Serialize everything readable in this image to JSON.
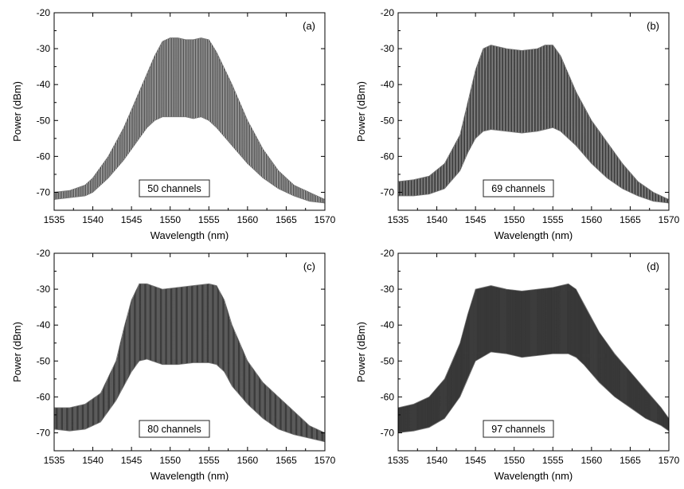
{
  "chart_data": [
    {
      "type": "line",
      "panel_label": "(a)",
      "annotation": "50 channels",
      "xlabel": "Wavelength (nm)",
      "ylabel": "Power (dBm)",
      "xlim": [
        1535,
        1570
      ],
      "ylim": [
        -75,
        -20
      ],
      "xticks": [
        1535,
        1540,
        1545,
        1550,
        1555,
        1560,
        1565,
        1570
      ],
      "yticks": [
        -20,
        -30,
        -40,
        -50,
        -60,
        -70
      ],
      "channel_count": 50,
      "upper_envelope": {
        "x": [
          1535,
          1537,
          1539,
          1540,
          1542,
          1544,
          1546,
          1547,
          1548,
          1549,
          1550,
          1551,
          1552,
          1553,
          1554,
          1555,
          1556,
          1558,
          1560,
          1562,
          1564,
          1566,
          1568,
          1570
        ],
        "y": [
          -70,
          -69.5,
          -68,
          -66,
          -60,
          -52,
          -42,
          -37,
          -32,
          -28,
          -27,
          -27,
          -27.5,
          -27.5,
          -27,
          -27.5,
          -31,
          -40,
          -50,
          -58,
          -64,
          -68,
          -70,
          -72
        ]
      },
      "lower_envelope": {
        "x": [
          1535,
          1537,
          1539,
          1540,
          1542,
          1544,
          1546,
          1547,
          1548,
          1549,
          1550,
          1551,
          1552,
          1553,
          1554,
          1555,
          1556,
          1558,
          1560,
          1562,
          1564,
          1566,
          1568,
          1570
        ],
        "y": [
          -72,
          -71.5,
          -71,
          -70,
          -66,
          -61,
          -55,
          -52,
          -50,
          -49,
          -49,
          -49,
          -49,
          -49.5,
          -49,
          -50,
          -52,
          -57,
          -62,
          -66,
          -69,
          -71,
          -72.5,
          -73
        ]
      }
    },
    {
      "type": "line",
      "panel_label": "(b)",
      "annotation": "69 channels",
      "xlabel": "Wavelength (nm)",
      "ylabel": "Power (dBm)",
      "xlim": [
        1535,
        1570
      ],
      "ylim": [
        -75,
        -20
      ],
      "xticks": [
        1535,
        1540,
        1545,
        1550,
        1555,
        1560,
        1565,
        1570
      ],
      "yticks": [
        -20,
        -30,
        -40,
        -50,
        -60,
        -70
      ],
      "channel_count": 69,
      "upper_envelope": {
        "x": [
          1535,
          1537,
          1539,
          1541,
          1543,
          1544,
          1545,
          1546,
          1547,
          1549,
          1551,
          1553,
          1554,
          1555,
          1556,
          1557,
          1558,
          1560,
          1562,
          1564,
          1566,
          1568,
          1570
        ],
        "y": [
          -67,
          -66.5,
          -65.5,
          -62,
          -54,
          -45,
          -36,
          -30,
          -29,
          -30,
          -30.5,
          -30,
          -29,
          -29,
          -32,
          -37,
          -42,
          -50,
          -56,
          -62,
          -67,
          -70,
          -72
        ]
      },
      "lower_envelope": {
        "x": [
          1535,
          1537,
          1539,
          1541,
          1543,
          1544,
          1545,
          1546,
          1547,
          1549,
          1551,
          1553,
          1554,
          1555,
          1556,
          1557,
          1558,
          1560,
          1562,
          1564,
          1566,
          1568,
          1570
        ],
        "y": [
          -71,
          -71,
          -70.5,
          -69,
          -64,
          -59,
          -55,
          -53,
          -52.5,
          -53,
          -53.5,
          -53,
          -52.5,
          -52,
          -53,
          -55,
          -57,
          -62,
          -66,
          -69,
          -71,
          -72.5,
          -73
        ]
      }
    },
    {
      "type": "line",
      "panel_label": "(c)",
      "annotation": "80 channels",
      "xlabel": "Wavelength (nm)",
      "ylabel": "Power (dBm)",
      "xlim": [
        1535,
        1570
      ],
      "ylim": [
        -75,
        -20
      ],
      "xticks": [
        1535,
        1540,
        1545,
        1550,
        1555,
        1560,
        1565,
        1570
      ],
      "yticks": [
        -20,
        -30,
        -40,
        -50,
        -60,
        -70
      ],
      "channel_count": 80,
      "upper_envelope": {
        "x": [
          1535,
          1537,
          1539,
          1541,
          1543,
          1544,
          1545,
          1546,
          1547,
          1549,
          1551,
          1553,
          1555,
          1556,
          1557,
          1558,
          1560,
          1562,
          1564,
          1566,
          1568,
          1570
        ],
        "y": [
          -63,
          -63,
          -62,
          -59,
          -50,
          -41,
          -33,
          -28.5,
          -28.5,
          -30,
          -29.5,
          -29,
          -28.5,
          -29,
          -33,
          -40,
          -50,
          -56,
          -60,
          -64,
          -68,
          -70
        ]
      },
      "lower_envelope": {
        "x": [
          1535,
          1537,
          1539,
          1541,
          1543,
          1544,
          1545,
          1546,
          1547,
          1549,
          1551,
          1553,
          1555,
          1556,
          1557,
          1558,
          1560,
          1562,
          1564,
          1566,
          1568,
          1570
        ],
        "y": [
          -69,
          -69.5,
          -69,
          -67,
          -61,
          -57,
          -53,
          -50,
          -49.5,
          -51,
          -51,
          -50.5,
          -50.5,
          -51,
          -53,
          -57,
          -62,
          -66,
          -69,
          -70.5,
          -71.5,
          -72.5
        ]
      }
    },
    {
      "type": "line",
      "panel_label": "(d)",
      "annotation": "97 channels",
      "xlabel": "Wavelength (nm)",
      "ylabel": "Power (dBm)",
      "xlim": [
        1535,
        1570
      ],
      "ylim": [
        -75,
        -20
      ],
      "xticks": [
        1535,
        1540,
        1545,
        1550,
        1555,
        1560,
        1565,
        1570
      ],
      "yticks": [
        -20,
        -30,
        -40,
        -50,
        -60,
        -70
      ],
      "channel_count": 97,
      "upper_envelope": {
        "x": [
          1535,
          1537,
          1539,
          1541,
          1543,
          1544,
          1545,
          1547,
          1549,
          1551,
          1553,
          1555,
          1557,
          1558,
          1559,
          1561,
          1563,
          1565,
          1567,
          1569,
          1570
        ],
        "y": [
          -63,
          -62,
          -60,
          -55,
          -45,
          -37,
          -30,
          -29,
          -30,
          -30.5,
          -30,
          -29.5,
          -28.5,
          -30,
          -34,
          -42,
          -48,
          -53,
          -58,
          -63,
          -66
        ]
      },
      "lower_envelope": {
        "x": [
          1535,
          1537,
          1539,
          1541,
          1543,
          1544,
          1545,
          1547,
          1549,
          1551,
          1553,
          1555,
          1557,
          1558,
          1559,
          1561,
          1563,
          1565,
          1567,
          1569,
          1570
        ],
        "y": [
          -70,
          -69.5,
          -68.5,
          -66,
          -60,
          -55,
          -50,
          -47.5,
          -48,
          -49,
          -48.5,
          -48,
          -48,
          -49,
          -51,
          -56,
          -60,
          -63,
          -66,
          -68,
          -69.5
        ]
      }
    }
  ]
}
